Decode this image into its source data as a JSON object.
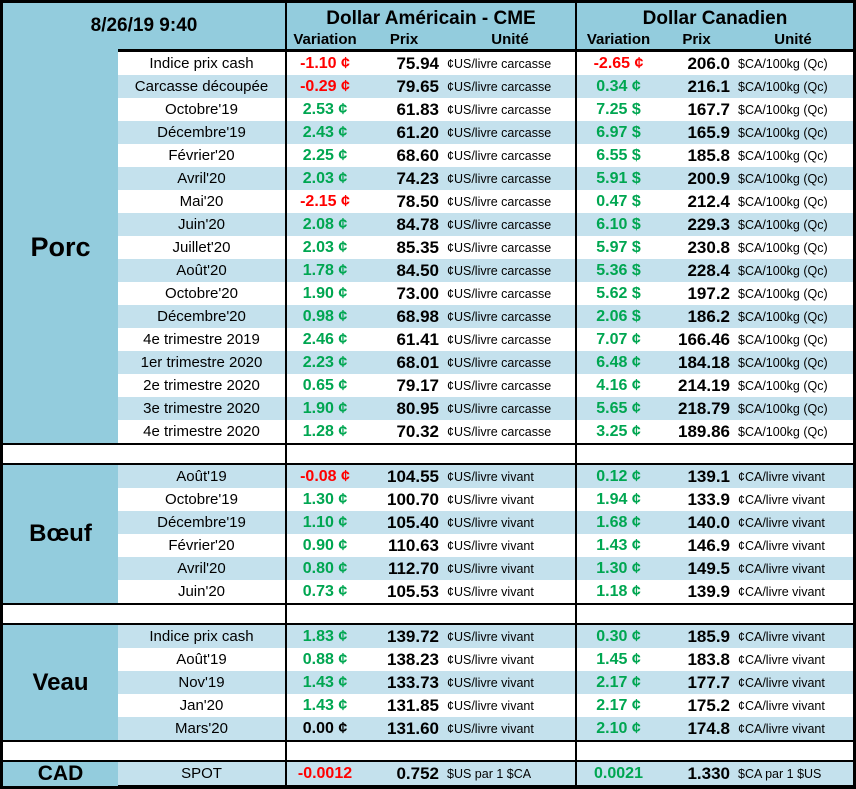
{
  "header": {
    "datetime": "8/26/19 9:40",
    "us_block_title": "Dollar Américain - CME",
    "ca_block_title": "Dollar Canadien",
    "col_variation": "Variation",
    "col_price": "Prix",
    "col_unit": "Unité"
  },
  "colors": {
    "teal": "#93CCDD",
    "stripe": "#C4E1ED",
    "positive": "#00A651",
    "negative": "#FF0000",
    "neutral": "#000000"
  },
  "sections": [
    {
      "label": "Porc",
      "rows": [
        {
          "label": "Indice prix cash",
          "us": {
            "variation": "-1.10 ¢",
            "price": "75.94",
            "unit": "¢US/livre carcasse"
          },
          "ca": {
            "variation": "-2.65 ¢",
            "price": "206.0",
            "unit": "$CA/100kg (Qc)"
          }
        },
        {
          "label": "Carcasse découpée",
          "us": {
            "variation": "-0.29 ¢",
            "price": "79.65",
            "unit": "¢US/livre carcasse"
          },
          "ca": {
            "variation": "0.34 ¢",
            "price": "216.1",
            "unit": "$CA/100kg (Qc)"
          }
        },
        {
          "label": "Octobre'19",
          "us": {
            "variation": "2.53 ¢",
            "price": "61.83",
            "unit": "¢US/livre carcasse"
          },
          "ca": {
            "variation": "7.25 $",
            "price": "167.7",
            "unit": "$CA/100kg (Qc)"
          }
        },
        {
          "label": "Décembre'19",
          "us": {
            "variation": "2.43 ¢",
            "price": "61.20",
            "unit": "¢US/livre carcasse"
          },
          "ca": {
            "variation": "6.97 $",
            "price": "165.9",
            "unit": "$CA/100kg (Qc)"
          }
        },
        {
          "label": "Février'20",
          "us": {
            "variation": "2.25 ¢",
            "price": "68.60",
            "unit": "¢US/livre carcasse"
          },
          "ca": {
            "variation": "6.55 $",
            "price": "185.8",
            "unit": "$CA/100kg (Qc)"
          }
        },
        {
          "label": "Avril'20",
          "us": {
            "variation": "2.03 ¢",
            "price": "74.23",
            "unit": "¢US/livre carcasse"
          },
          "ca": {
            "variation": "5.91 $",
            "price": "200.9",
            "unit": "$CA/100kg (Qc)"
          }
        },
        {
          "label": "Mai'20",
          "us": {
            "variation": "-2.15 ¢",
            "price": "78.50",
            "unit": "¢US/livre carcasse"
          },
          "ca": {
            "variation": "0.47 $",
            "price": "212.4",
            "unit": "$CA/100kg (Qc)"
          }
        },
        {
          "label": "Juin'20",
          "us": {
            "variation": "2.08 ¢",
            "price": "84.78",
            "unit": "¢US/livre carcasse"
          },
          "ca": {
            "variation": "6.10 $",
            "price": "229.3",
            "unit": "$CA/100kg (Qc)"
          }
        },
        {
          "label": "Juillet'20",
          "us": {
            "variation": "2.03 ¢",
            "price": "85.35",
            "unit": "¢US/livre carcasse"
          },
          "ca": {
            "variation": "5.97 $",
            "price": "230.8",
            "unit": "$CA/100kg (Qc)"
          }
        },
        {
          "label": "Août'20",
          "us": {
            "variation": "1.78 ¢",
            "price": "84.50",
            "unit": "¢US/livre carcasse"
          },
          "ca": {
            "variation": "5.36 $",
            "price": "228.4",
            "unit": "$CA/100kg (Qc)"
          }
        },
        {
          "label": "Octobre'20",
          "us": {
            "variation": "1.90 ¢",
            "price": "73.00",
            "unit": "¢US/livre carcasse"
          },
          "ca": {
            "variation": "5.62 $",
            "price": "197.2",
            "unit": "$CA/100kg (Qc)"
          }
        },
        {
          "label": "Décembre'20",
          "us": {
            "variation": "0.98 ¢",
            "price": "68.98",
            "unit": "¢US/livre carcasse"
          },
          "ca": {
            "variation": "2.06 $",
            "price": "186.2",
            "unit": "$CA/100kg (Qc)"
          }
        },
        {
          "label": "4e trimestre 2019",
          "us": {
            "variation": "2.46 ¢",
            "price": "61.41",
            "unit": "¢US/livre carcasse"
          },
          "ca": {
            "variation": "7.07 ¢",
            "price": "166.46",
            "unit": "$CA/100kg (Qc)"
          }
        },
        {
          "label": "1er trimestre 2020",
          "us": {
            "variation": "2.23 ¢",
            "price": "68.01",
            "unit": "¢US/livre carcasse"
          },
          "ca": {
            "variation": "6.48 ¢",
            "price": "184.18",
            "unit": "$CA/100kg (Qc)"
          }
        },
        {
          "label": "2e trimestre 2020",
          "us": {
            "variation": "0.65 ¢",
            "price": "79.17",
            "unit": "¢US/livre carcasse"
          },
          "ca": {
            "variation": "4.16 ¢",
            "price": "214.19",
            "unit": "$CA/100kg (Qc)"
          }
        },
        {
          "label": "3e trimestre 2020",
          "us": {
            "variation": "1.90 ¢",
            "price": "80.95",
            "unit": "¢US/livre carcasse"
          },
          "ca": {
            "variation": "5.65 ¢",
            "price": "218.79",
            "unit": "$CA/100kg (Qc)"
          }
        },
        {
          "label": "4e trimestre 2020",
          "us": {
            "variation": "1.28 ¢",
            "price": "70.32",
            "unit": "¢US/livre carcasse"
          },
          "ca": {
            "variation": "3.25 ¢",
            "price": "189.86",
            "unit": "$CA/100kg (Qc)"
          }
        }
      ]
    },
    {
      "label": "Bœuf",
      "rows": [
        {
          "label": "Août'19",
          "us": {
            "variation": "-0.08 ¢",
            "price": "104.55",
            "unit": "¢US/livre vivant"
          },
          "ca": {
            "variation": "0.12 ¢",
            "price": "139.1",
            "unit": "¢CA/livre vivant"
          }
        },
        {
          "label": "Octobre'19",
          "us": {
            "variation": "1.30 ¢",
            "price": "100.70",
            "unit": "¢US/livre vivant"
          },
          "ca": {
            "variation": "1.94 ¢",
            "price": "133.9",
            "unit": "¢CA/livre vivant"
          }
        },
        {
          "label": "Décembre'19",
          "us": {
            "variation": "1.10 ¢",
            "price": "105.40",
            "unit": "¢US/livre vivant"
          },
          "ca": {
            "variation": "1.68 ¢",
            "price": "140.0",
            "unit": "¢CA/livre vivant"
          }
        },
        {
          "label": "Février'20",
          "us": {
            "variation": "0.90 ¢",
            "price": "110.63",
            "unit": "¢US/livre vivant"
          },
          "ca": {
            "variation": "1.43 ¢",
            "price": "146.9",
            "unit": "¢CA/livre vivant"
          }
        },
        {
          "label": "Avril'20",
          "us": {
            "variation": "0.80 ¢",
            "price": "112.70",
            "unit": "¢US/livre vivant"
          },
          "ca": {
            "variation": "1.30 ¢",
            "price": "149.5",
            "unit": "¢CA/livre vivant"
          }
        },
        {
          "label": "Juin'20",
          "us": {
            "variation": "0.73 ¢",
            "price": "105.53",
            "unit": "¢US/livre vivant"
          },
          "ca": {
            "variation": "1.18 ¢",
            "price": "139.9",
            "unit": "¢CA/livre vivant"
          }
        }
      ]
    },
    {
      "label": "Veau",
      "rows": [
        {
          "label": "Indice prix cash",
          "us": {
            "variation": "1.83 ¢",
            "price": "139.72",
            "unit": "¢US/livre vivant"
          },
          "ca": {
            "variation": "0.30 ¢",
            "price": "185.9",
            "unit": "¢CA/livre vivant"
          }
        },
        {
          "label": "Août'19",
          "us": {
            "variation": "0.88 ¢",
            "price": "138.23",
            "unit": "¢US/livre vivant"
          },
          "ca": {
            "variation": "1.45 ¢",
            "price": "183.8",
            "unit": "¢CA/livre vivant"
          }
        },
        {
          "label": "Nov'19",
          "us": {
            "variation": "1.43 ¢",
            "price": "133.73",
            "unit": "¢US/livre vivant"
          },
          "ca": {
            "variation": "2.17 ¢",
            "price": "177.7",
            "unit": "¢CA/livre vivant"
          }
        },
        {
          "label": "Jan'20",
          "us": {
            "variation": "1.43 ¢",
            "price": "131.85",
            "unit": "¢US/livre vivant"
          },
          "ca": {
            "variation": "2.17 ¢",
            "price": "175.2",
            "unit": "¢CA/livre vivant"
          }
        },
        {
          "label": "Mars'20",
          "us": {
            "variation": "0.00 ¢",
            "price": "131.60",
            "unit": "¢US/livre vivant"
          },
          "ca": {
            "variation": "2.10 ¢",
            "price": "174.8",
            "unit": "¢CA/livre vivant"
          }
        }
      ]
    },
    {
      "label": "CAD",
      "rows": [
        {
          "label": "SPOT",
          "us": {
            "variation": "-0.0012",
            "price": "0.752",
            "unit": "$US par 1 $CA"
          },
          "ca": {
            "variation": "0.0021",
            "price": "1.330",
            "unit": "$CA par 1 $US"
          }
        }
      ]
    }
  ]
}
